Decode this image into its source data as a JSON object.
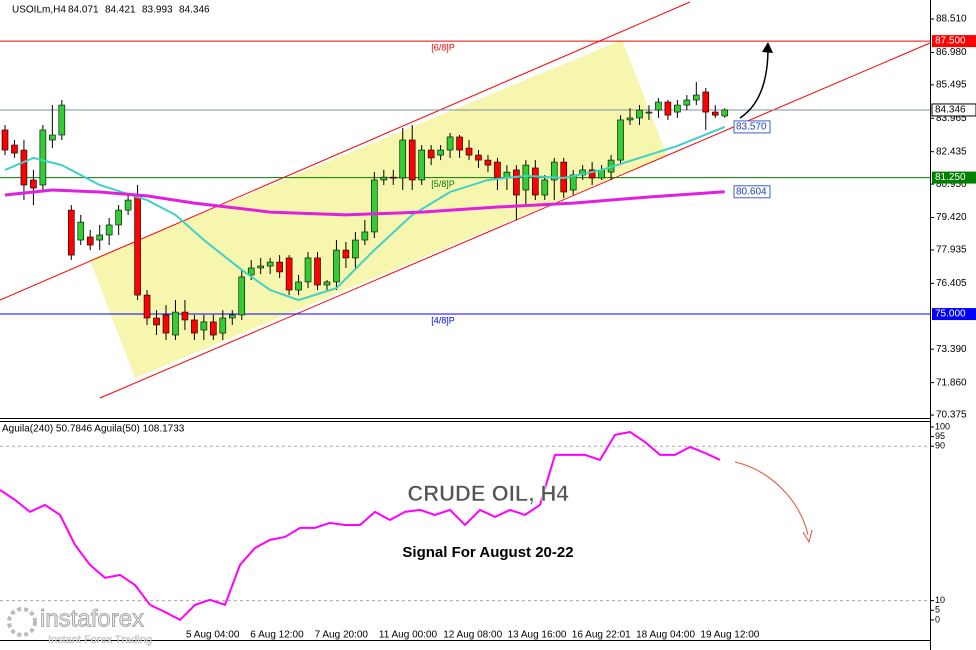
{
  "chart_data": [
    {
      "type": "candlestick",
      "title": "USOILm,H4",
      "last_ohlc": [
        84.071,
        84.421,
        83.993,
        84.346
      ],
      "x_labels": [
        "5 Aug 04:00",
        "6 Aug 12:00",
        "7 Aug 20:00",
        "11 Aug 00:00",
        "12 Aug 08:00",
        "13 Aug 16:00",
        "16 Aug 22:01",
        "18 Aug 04:00",
        "19 Aug 12:00"
      ],
      "open": [
        83.43,
        82.74,
        82.51,
        81.14,
        80.91,
        82.97,
        83.2,
        79.76,
        78.39,
        78.53,
        78.39,
        78.62,
        79.08,
        79.76,
        80.45,
        75.87,
        74.82,
        74.96,
        74.04,
        75.09,
        74.73,
        74.27,
        74.64,
        74.13,
        74.82,
        74.96,
        76.79,
        77.11,
        77.2,
        77.38,
        77.57,
        76.1,
        76.47,
        77.57,
        76.33,
        76.47,
        77.93,
        77.57,
        78.39,
        78.76,
        81.14,
        81.27,
        81.23,
        82.97,
        81.14,
        82.51,
        82.28,
        82.51,
        83.11,
        82.6,
        82.28,
        82.05,
        81.96,
        81.23,
        81.6,
        80.68,
        81.69,
        80.45,
        81.14,
        81.96,
        80.68,
        81.37,
        81.6,
        81.23,
        81.5,
        82.05,
        83.89,
        83.98,
        84.25,
        84.34,
        84.71,
        84.25,
        84.57,
        84.8,
        85.17,
        84.25,
        84.07
      ],
      "high": [
        83.66,
        82.97,
        82.97,
        81.6,
        83.66,
        84.57,
        84.8,
        79.99,
        79.54,
        78.85,
        79.08,
        79.4,
        79.99,
        80.45,
        80.91,
        76.1,
        75.18,
        75.41,
        75.64,
        75.64,
        74.96,
        74.96,
        74.96,
        75.18,
        75.18,
        77.02,
        77.47,
        77.57,
        77.57,
        77.7,
        77.7,
        76.79,
        77.84,
        77.84,
        76.56,
        78.39,
        78.3,
        78.76,
        79.31,
        81.5,
        81.6,
        81.6,
        83.52,
        83.66,
        82.74,
        82.74,
        82.74,
        83.29,
        83.2,
        82.97,
        82.51,
        82.28,
        82.15,
        81.82,
        81.82,
        82.05,
        82.05,
        81.37,
        82.15,
        82.15,
        81.6,
        81.82,
        81.96,
        81.82,
        82.28,
        84.11,
        84.43,
        84.57,
        84.57,
        84.89,
        84.8,
        84.8,
        85.03,
        85.63,
        85.35,
        84.57,
        84.42
      ],
      "low": [
        82.28,
        82.15,
        80.22,
        79.99,
        80.68,
        82.6,
        82.97,
        77.47,
        78.16,
        77.93,
        77.93,
        78.16,
        78.62,
        79.54,
        75.64,
        74.5,
        74.04,
        73.81,
        73.81,
        74.27,
        73.81,
        73.81,
        73.81,
        73.81,
        74.5,
        74.73,
        76.56,
        76.83,
        76.83,
        76.65,
        75.87,
        75.87,
        76.19,
        76.1,
        76.1,
        76.1,
        77.11,
        77.02,
        78.16,
        78.48,
        80.91,
        80.91,
        80.68,
        80.68,
        80.91,
        81.82,
        82.05,
        82.15,
        82.15,
        82.05,
        81.69,
        81.5,
        80.68,
        80.68,
        79.31,
        79.99,
        80.22,
        80.22,
        80.22,
        80.31,
        80.45,
        81.14,
        80.91,
        81.14,
        81.14,
        81.82,
        83.66,
        83.66,
        83.89,
        83.98,
        83.89,
        83.98,
        84.34,
        84.57,
        83.43,
        83.98,
        83.99
      ],
      "close": [
        82.51,
        82.37,
        80.91,
        80.77,
        83.43,
        83.2,
        84.57,
        77.7,
        79.21,
        78.16,
        78.62,
        79.08,
        79.76,
        80.22,
        75.87,
        74.82,
        74.5,
        74.13,
        75.09,
        74.73,
        74.13,
        74.64,
        74.04,
        74.82,
        74.96,
        76.7,
        77.11,
        77.2,
        77.38,
        76.93,
        76.1,
        76.47,
        77.57,
        76.33,
        76.47,
        77.93,
        77.57,
        78.39,
        78.76,
        81.14,
        81.27,
        81.23,
        82.97,
        81.14,
        82.51,
        82.15,
        82.51,
        83.11,
        82.51,
        82.28,
        82.05,
        81.82,
        81.23,
        81.5,
        80.45,
        81.82,
        80.45,
        81.14,
        81.96,
        80.59,
        81.37,
        81.6,
        81.23,
        81.6,
        82.05,
        83.89,
        83.98,
        84.34,
        84.25,
        84.71,
        84.11,
        84.57,
        84.8,
        85.03,
        84.25,
        84.11,
        84.35
      ],
      "up_color": "#32cd32",
      "down_color": "#ff0000",
      "overlays": [
        {
          "color": "#40d0c8",
          "x": [
            0,
            3,
            6,
            10,
            15,
            18,
            21,
            25,
            28,
            31,
            35,
            39,
            43,
            47,
            51,
            55,
            59,
            63,
            67,
            71,
            76
          ],
          "values": [
            81.6,
            82.15,
            81.82,
            80.91,
            80.22,
            79.54,
            78.39,
            77.02,
            76.1,
            75.64,
            76.19,
            77.93,
            79.54,
            80.59,
            81.14,
            81.33,
            81.23,
            81.6,
            82.15,
            82.7,
            83.57
          ],
          "last_label": "83.570"
        },
        {
          "color": "#e020e0",
          "x": [
            0,
            5,
            10,
            15,
            20,
            28,
            36,
            44,
            52,
            60,
            68,
            76
          ],
          "values": [
            80.45,
            80.68,
            80.59,
            80.41,
            80.08,
            79.67,
            79.54,
            79.67,
            79.9,
            80.08,
            80.36,
            80.6
          ],
          "last_label": "80.604"
        }
      ],
      "levels": [
        {
          "value": 87.5,
          "label": "87.500",
          "name": "[6/8]P",
          "color": "#ff0000"
        },
        {
          "value": 81.25,
          "label": "81.250",
          "name": "[5/8]P",
          "color": "#008000"
        },
        {
          "value": 75,
          "label": "75.000",
          "name": "[4/8]P",
          "color": "#0000ff"
        }
      ],
      "price_line": {
        "value": 84.346,
        "label": "84.346",
        "color": "#8090a0"
      },
      "ylim": [
        70.24,
        89.29
      ],
      "yticks": [
        {
          "value": 88.51,
          "label": "88.510"
        },
        {
          "value": 86.98,
          "label": "86.980"
        },
        85.495,
        83.965,
        82.435,
        {
          "value": 80.95,
          "label": "80.950"
        },
        {
          "value": 79.42,
          "label": "79.420"
        },
        77.935,
        76.405,
        {
          "value": 73.39,
          "label": "73.390"
        },
        {
          "value": 71.86,
          "label": "71.860"
        },
        70.375
      ]
    },
    {
      "type": "line",
      "title": "Aguila(240) 50.7846  Aguila(50) 108.1733",
      "color": "#ff00ff",
      "values": [
        67.4,
        62.2,
        56,
        59.6,
        54.4,
        38.9,
        28.5,
        21.8,
        23.3,
        18.1,
        7.8,
        4.1,
        0,
        7.8,
        10.4,
        7.8,
        28.5,
        37.3,
        41.5,
        43,
        47.7,
        47.7,
        50.3,
        49.2,
        49.2,
        56,
        51.8,
        56,
        57,
        54.4,
        57,
        49.2,
        57,
        53.4,
        57,
        54.4,
        59.6,
        85.5,
        85.5,
        85.5,
        82.9,
        95.9,
        97.4,
        92.2,
        85.5,
        85.5,
        89.6,
        86.5,
        82.9
      ],
      "levels": [
        90,
        10
      ],
      "ylim": [
        -10.4,
        103.6
      ],
      "yticks": [
        100,
        95,
        90,
        10,
        5,
        0
      ]
    }
  ],
  "annotations": {
    "headline": "CRUDE OIL, H4",
    "subtitle": "Signal For August 20-22",
    "brand": "instaforex",
    "tagline": "Instant Forex Trading"
  }
}
